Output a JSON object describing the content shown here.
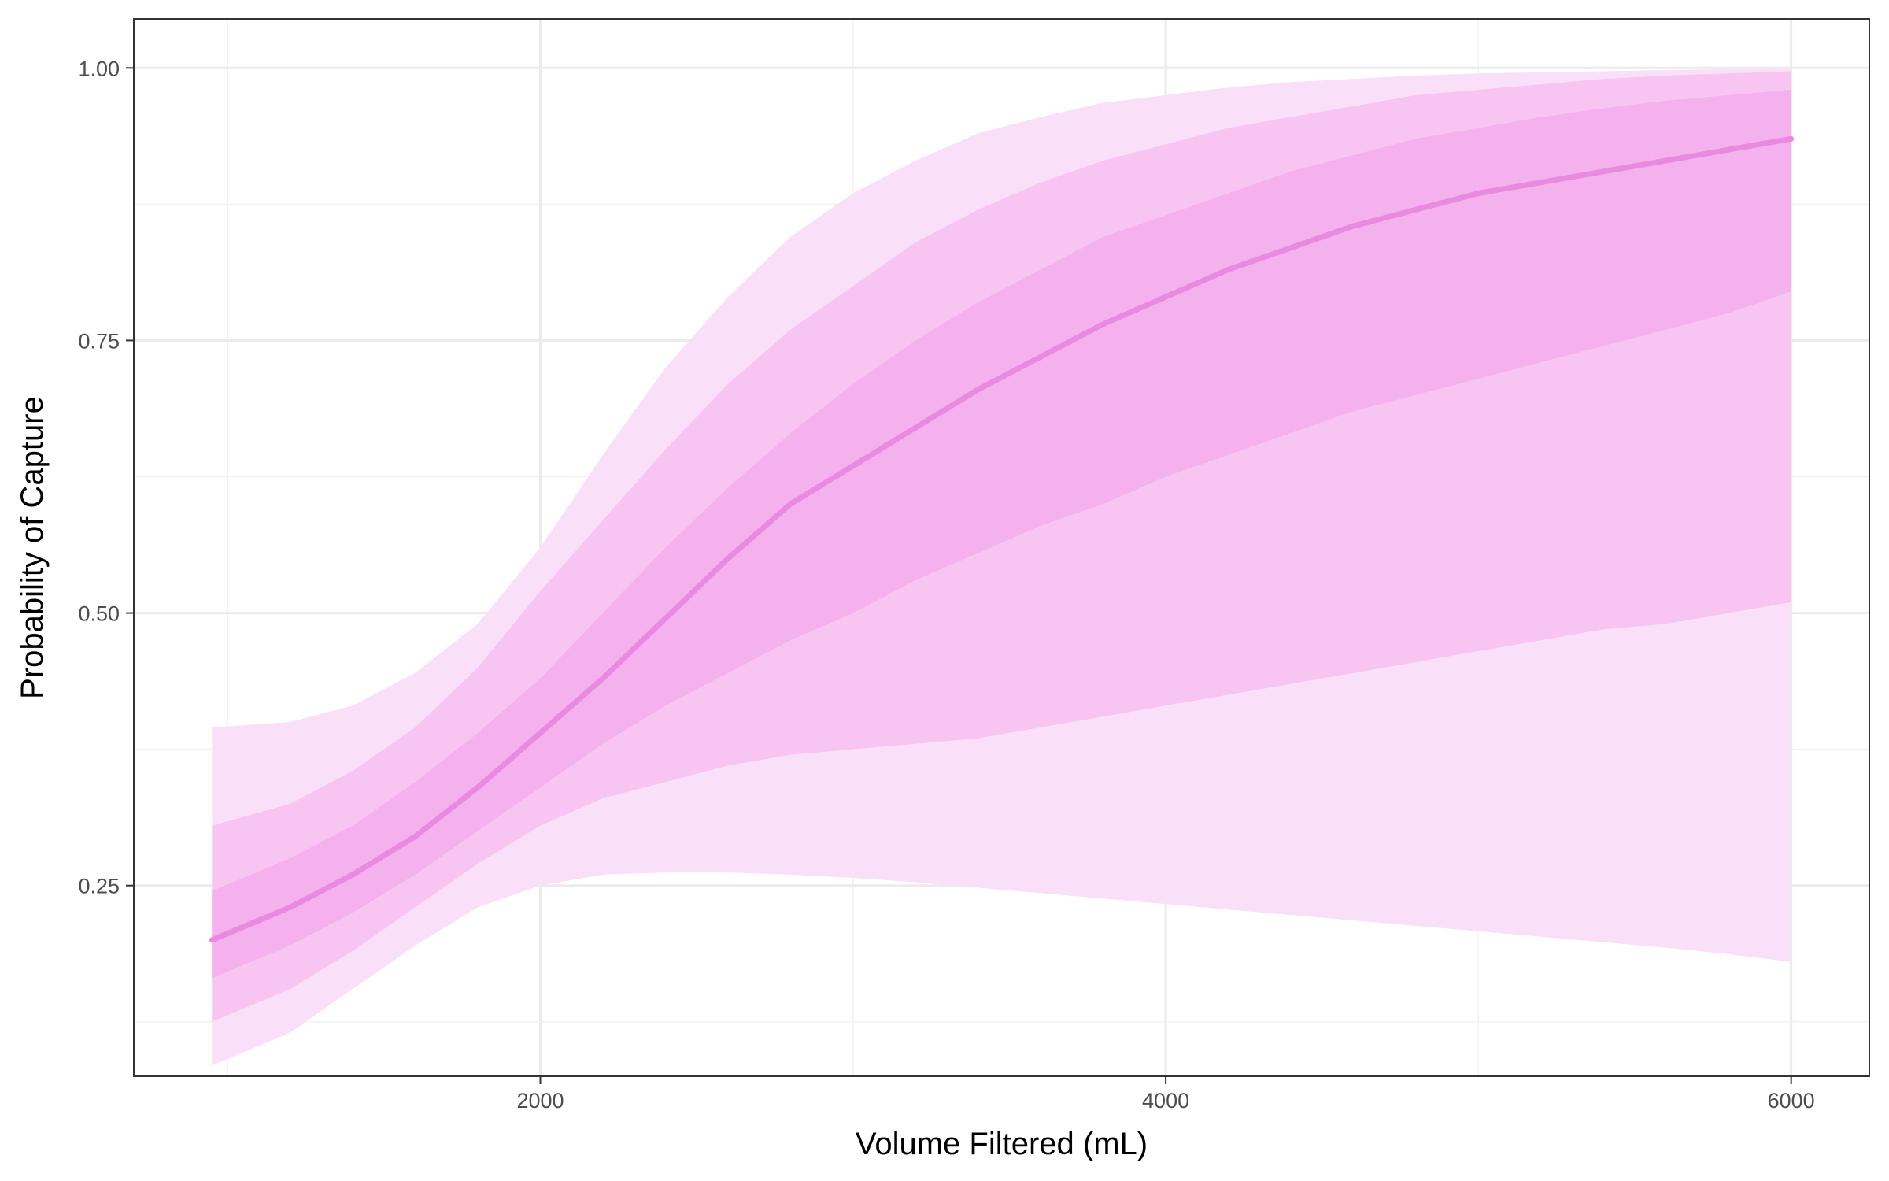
{
  "chart_data": {
    "type": "area",
    "xlabel": "Volume Filtered (mL)",
    "ylabel": "Probability of Capture",
    "xlim": [
      700,
      6250
    ],
    "ylim": [
      0.075,
      1.045
    ],
    "x_ticks": [
      2000,
      4000,
      6000
    ],
    "x_tick_labels": [
      "2000",
      "4000",
      "6000"
    ],
    "y_ticks": [
      0.25,
      0.5,
      0.75,
      1.0
    ],
    "y_tick_labels": [
      "0.25",
      "0.50",
      "0.75",
      "1.00"
    ],
    "x_minor_ticks": [
      1000,
      3000,
      5000
    ],
    "y_minor_ticks": [
      0.125,
      0.375,
      0.625,
      0.875
    ],
    "grid": true,
    "legend": "none",
    "colors": {
      "band_outer": "#f9dff8",
      "band_mid": "#f8c5f2",
      "band_inner": "#f4b1ee",
      "line": "#e98ae1",
      "grid_major": "#ebebeb",
      "grid_minor": "#f2f2f2",
      "panel_border": "#333333"
    },
    "x": [
      950,
      1200,
      1400,
      1600,
      1800,
      2000,
      2200,
      2400,
      2600,
      2800,
      3000,
      3200,
      3400,
      3600,
      3800,
      4000,
      4200,
      4400,
      4600,
      4800,
      5000,
      5200,
      5400,
      5600,
      5800,
      6000
    ],
    "series": [
      {
        "role": "median",
        "values": [
          0.2,
          0.23,
          0.26,
          0.295,
          0.34,
          0.39,
          0.44,
          0.495,
          0.55,
          0.6,
          0.635,
          0.67,
          0.705,
          0.735,
          0.765,
          0.79,
          0.815,
          0.835,
          0.855,
          0.87,
          0.885,
          0.895,
          0.905,
          0.915,
          0.925,
          0.935
        ]
      },
      {
        "role": "inner-band",
        "lower": [
          0.165,
          0.195,
          0.225,
          0.26,
          0.3,
          0.34,
          0.38,
          0.415,
          0.445,
          0.475,
          0.5,
          0.53,
          0.555,
          0.58,
          0.6,
          0.625,
          0.645,
          0.665,
          0.685,
          0.7,
          0.715,
          0.73,
          0.745,
          0.76,
          0.775,
          0.795
        ],
        "upper": [
          0.245,
          0.275,
          0.305,
          0.345,
          0.39,
          0.44,
          0.5,
          0.56,
          0.615,
          0.665,
          0.71,
          0.75,
          0.785,
          0.815,
          0.845,
          0.865,
          0.885,
          0.905,
          0.92,
          0.935,
          0.945,
          0.955,
          0.963,
          0.97,
          0.975,
          0.98
        ]
      },
      {
        "role": "middle-band",
        "lower": [
          0.125,
          0.155,
          0.19,
          0.23,
          0.27,
          0.305,
          0.33,
          0.345,
          0.36,
          0.37,
          0.375,
          0.38,
          0.385,
          0.395,
          0.405,
          0.415,
          0.425,
          0.435,
          0.445,
          0.455,
          0.465,
          0.475,
          0.485,
          0.49,
          0.5,
          0.51
        ],
        "upper": [
          0.305,
          0.325,
          0.355,
          0.395,
          0.45,
          0.52,
          0.585,
          0.65,
          0.71,
          0.76,
          0.8,
          0.84,
          0.87,
          0.895,
          0.915,
          0.93,
          0.945,
          0.955,
          0.965,
          0.975,
          0.98,
          0.985,
          0.99,
          0.993,
          0.995,
          0.997
        ]
      },
      {
        "role": "outer-band",
        "lower": [
          0.085,
          0.115,
          0.155,
          0.195,
          0.23,
          0.25,
          0.26,
          0.262,
          0.262,
          0.26,
          0.257,
          0.253,
          0.248,
          0.243,
          0.238,
          0.233,
          0.228,
          0.223,
          0.218,
          0.213,
          0.208,
          0.203,
          0.198,
          0.193,
          0.187,
          0.18
        ],
        "upper": [
          0.395,
          0.4,
          0.415,
          0.445,
          0.49,
          0.56,
          0.645,
          0.725,
          0.79,
          0.845,
          0.885,
          0.915,
          0.94,
          0.955,
          0.968,
          0.975,
          0.982,
          0.987,
          0.99,
          0.993,
          0.995,
          0.996,
          0.997,
          0.998,
          0.999,
          0.999
        ]
      }
    ]
  }
}
